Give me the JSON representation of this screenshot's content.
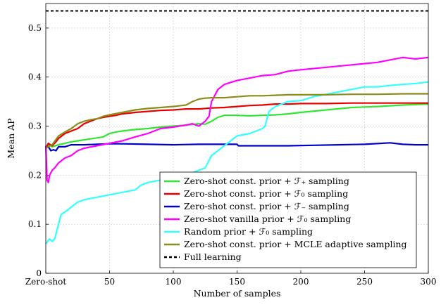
{
  "chart_data": {
    "type": "line",
    "xlabel": "Number of samples",
    "ylabel": "Mean AP",
    "xlim": [
      0,
      300
    ],
    "ylim": [
      0,
      0.55
    ],
    "x_ticks": [
      {
        "value": 0,
        "label": "Zero-shot"
      },
      {
        "value": 50,
        "label": "50"
      },
      {
        "value": 100,
        "label": "100"
      },
      {
        "value": 150,
        "label": "150"
      },
      {
        "value": 200,
        "label": "200"
      },
      {
        "value": 250,
        "label": "250"
      },
      {
        "value": 300,
        "label": "300"
      }
    ],
    "y_ticks": [
      {
        "value": 0,
        "label": "0"
      },
      {
        "value": 0.1,
        "label": "0.1"
      },
      {
        "value": 0.2,
        "label": "0.2"
      },
      {
        "value": 0.3,
        "label": "0.3"
      },
      {
        "value": 0.4,
        "label": "0.4"
      },
      {
        "value": 0.5,
        "label": "0.5"
      }
    ],
    "grid": "dotted",
    "legend_position": "bottom-right",
    "series": [
      {
        "name": "Zero-shot const. prior + ℱ₊ sampling",
        "color": "#33e533",
        "dash": "solid",
        "x": [
          0,
          2,
          5,
          10,
          15,
          20,
          25,
          30,
          35,
          40,
          45,
          50,
          55,
          60,
          70,
          80,
          90,
          100,
          110,
          120,
          125,
          130,
          135,
          140,
          150,
          160,
          170,
          180,
          190,
          200,
          220,
          240,
          260,
          280,
          300
        ],
        "y": [
          0.255,
          0.262,
          0.258,
          0.262,
          0.265,
          0.268,
          0.27,
          0.272,
          0.274,
          0.276,
          0.278,
          0.285,
          0.288,
          0.29,
          0.293,
          0.295,
          0.298,
          0.3,
          0.302,
          0.305,
          0.304,
          0.31,
          0.318,
          0.322,
          0.322,
          0.321,
          0.322,
          0.323,
          0.325,
          0.328,
          0.333,
          0.338,
          0.34,
          0.343,
          0.345
        ]
      },
      {
        "name": "Zero-shot const. prior + ℱ₀ sampling",
        "color": "#e60000",
        "dash": "solid",
        "x": [
          0,
          2,
          5,
          8,
          10,
          15,
          20,
          25,
          30,
          35,
          40,
          45,
          50,
          55,
          60,
          70,
          80,
          90,
          100,
          110,
          120,
          130,
          140,
          150,
          160,
          170,
          180,
          190,
          200,
          220,
          240,
          260,
          280,
          300
        ],
        "y": [
          0.255,
          0.265,
          0.26,
          0.268,
          0.275,
          0.285,
          0.29,
          0.295,
          0.305,
          0.31,
          0.315,
          0.318,
          0.32,
          0.322,
          0.325,
          0.328,
          0.33,
          0.332,
          0.333,
          0.335,
          0.335,
          0.337,
          0.338,
          0.34,
          0.342,
          0.343,
          0.345,
          0.345,
          0.346,
          0.346,
          0.347,
          0.347,
          0.347,
          0.347
        ]
      },
      {
        "name": "Zero-shot const. prior + ℱ₋ sampling",
        "color": "#0000cc",
        "dash": "solid",
        "x": [
          0,
          2,
          4,
          6,
          8,
          10,
          15,
          20,
          30,
          40,
          50,
          60,
          80,
          100,
          120,
          140,
          150,
          151,
          170,
          190,
          210,
          230,
          250,
          270,
          280,
          290,
          300
        ],
        "y": [
          0.255,
          0.258,
          0.25,
          0.252,
          0.25,
          0.258,
          0.258,
          0.262,
          0.262,
          0.263,
          0.264,
          0.264,
          0.263,
          0.262,
          0.263,
          0.263,
          0.263,
          0.26,
          0.26,
          0.26,
          0.261,
          0.262,
          0.263,
          0.266,
          0.263,
          0.262,
          0.262
        ]
      },
      {
        "name": "Zero-shot vanilla prior + ℱ₀ sampling",
        "color": "#ff00ff",
        "dash": "solid",
        "x": [
          0,
          1,
          2,
          3,
          5,
          7,
          10,
          15,
          20,
          25,
          30,
          40,
          50,
          60,
          70,
          80,
          90,
          100,
          110,
          115,
          120,
          125,
          128,
          130,
          135,
          140,
          150,
          160,
          170,
          180,
          190,
          200,
          220,
          240,
          260,
          270,
          280,
          290,
          300
        ],
        "y": [
          0.26,
          0.19,
          0.185,
          0.2,
          0.21,
          0.215,
          0.225,
          0.235,
          0.24,
          0.25,
          0.255,
          0.26,
          0.265,
          0.27,
          0.278,
          0.285,
          0.295,
          0.298,
          0.302,
          0.305,
          0.3,
          0.31,
          0.32,
          0.35,
          0.375,
          0.385,
          0.393,
          0.398,
          0.403,
          0.405,
          0.412,
          0.415,
          0.42,
          0.425,
          0.43,
          0.435,
          0.44,
          0.437,
          0.44
        ]
      },
      {
        "name": "Random prior + ℱ₀ sampling",
        "color": "#33ffff",
        "dash": "solid",
        "x": [
          0,
          3,
          5,
          7,
          10,
          12,
          15,
          20,
          25,
          30,
          40,
          50,
          60,
          70,
          75,
          80,
          90,
          100,
          110,
          115,
          120,
          125,
          130,
          140,
          150,
          160,
          165,
          170,
          172,
          175,
          180,
          190,
          200,
          210,
          220,
          230,
          240,
          250,
          260,
          270,
          280,
          290,
          300
        ],
        "y": [
          0.06,
          0.07,
          0.065,
          0.07,
          0.1,
          0.12,
          0.125,
          0.135,
          0.145,
          0.15,
          0.155,
          0.16,
          0.165,
          0.17,
          0.18,
          0.185,
          0.19,
          0.19,
          0.2,
          0.205,
          0.21,
          0.215,
          0.24,
          0.26,
          0.28,
          0.285,
          0.29,
          0.295,
          0.3,
          0.33,
          0.34,
          0.35,
          0.352,
          0.36,
          0.365,
          0.37,
          0.375,
          0.38,
          0.38,
          0.383,
          0.385,
          0.387,
          0.39
        ]
      },
      {
        "name": "Zero-shot const. prior + MCLE adaptive sampling",
        "color": "#8c8c1a",
        "dash": "solid",
        "x": [
          0,
          3,
          5,
          10,
          15,
          20,
          25,
          30,
          35,
          40,
          45,
          50,
          60,
          70,
          80,
          90,
          100,
          110,
          115,
          120,
          125,
          130,
          140,
          150,
          160,
          170,
          180,
          190,
          200,
          220,
          240,
          260,
          280,
          300
        ],
        "y": [
          0.255,
          0.26,
          0.262,
          0.28,
          0.288,
          0.295,
          0.305,
          0.31,
          0.313,
          0.315,
          0.32,
          0.323,
          0.328,
          0.333,
          0.336,
          0.338,
          0.34,
          0.343,
          0.35,
          0.355,
          0.357,
          0.358,
          0.358,
          0.36,
          0.362,
          0.362,
          0.363,
          0.364,
          0.364,
          0.364,
          0.365,
          0.365,
          0.366,
          0.366
        ]
      },
      {
        "name": "Full learning",
        "color": "#000000",
        "dash": "dashed",
        "x": [
          0,
          300
        ],
        "y": [
          0.535,
          0.535
        ]
      }
    ]
  }
}
